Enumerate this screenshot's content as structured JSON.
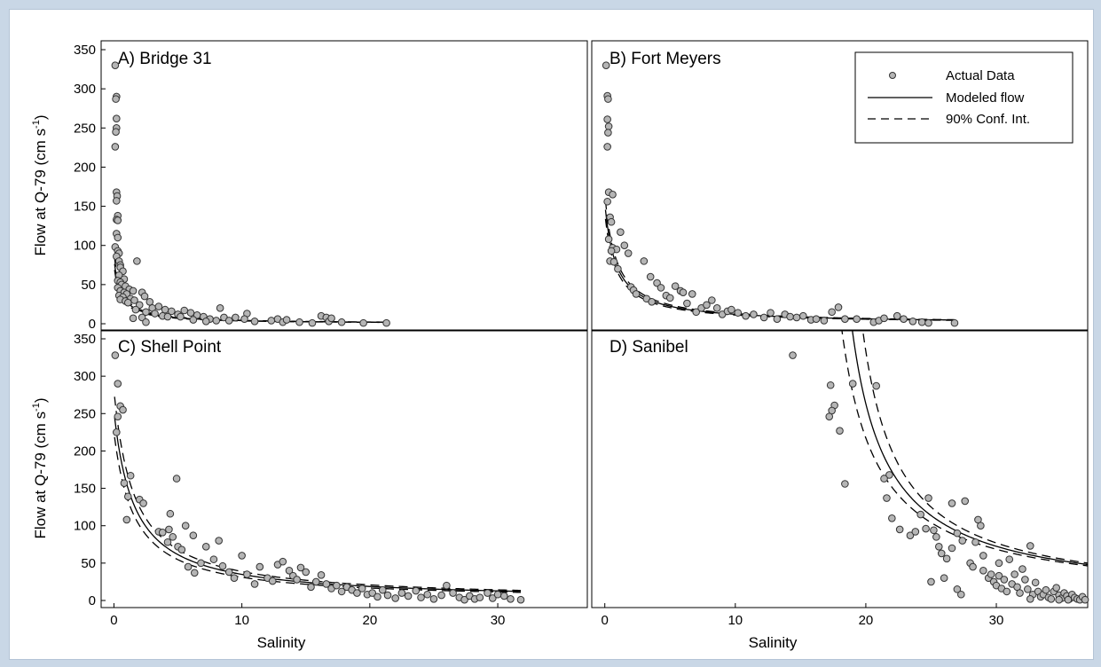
{
  "colors": {
    "marker_fill": "#b5b5b5",
    "marker_edge": "#333333",
    "line": "#000000",
    "panel_border": "#000000"
  },
  "legend": {
    "placement": "top-right of panel B",
    "entries": [
      {
        "label": "Actual Data",
        "style": "marker"
      },
      {
        "label": "Modeled flow",
        "style": "solid"
      },
      {
        "label": "90% Conf. Int.",
        "style": "dashed"
      }
    ]
  },
  "chart_data": [
    {
      "type": "scatter",
      "panel": "A",
      "title": "A) Bridge 31",
      "ylabel": "Flow at Q-79 (cm s-1)",
      "xlabel": "",
      "xlim": [
        -1,
        37
      ],
      "ylim": [
        0,
        350
      ],
      "xticks": [],
      "yticks": [
        "0",
        "50",
        "100",
        "150",
        "200",
        "250",
        "300",
        "350"
      ],
      "grid": false,
      "model": {
        "form": "a/(x+b)",
        "a": 42,
        "b": 0.5,
        "ci_low": 0.9,
        "ci_high": 1.1,
        "x_range": [
          0.05,
          21.5
        ]
      },
      "points": [
        [
          0.1,
          330
        ],
        [
          0.2,
          290
        ],
        [
          0.15,
          287
        ],
        [
          0.2,
          262
        ],
        [
          0.2,
          250
        ],
        [
          0.15,
          245
        ],
        [
          0.1,
          226
        ],
        [
          0.2,
          168
        ],
        [
          0.25,
          163
        ],
        [
          0.2,
          157
        ],
        [
          0.3,
          138
        ],
        [
          0.2,
          133
        ],
        [
          0.3,
          132
        ],
        [
          0.2,
          115
        ],
        [
          0.3,
          110
        ],
        [
          0.1,
          98
        ],
        [
          0.3,
          93
        ],
        [
          0.4,
          90
        ],
        [
          0.2,
          86
        ],
        [
          0.4,
          80
        ],
        [
          0.5,
          75
        ],
        [
          0.5,
          72
        ],
        [
          0.7,
          67
        ],
        [
          0.4,
          62
        ],
        [
          0.8,
          57
        ],
        [
          0.3,
          55
        ],
        [
          0.5,
          53
        ],
        [
          0.6,
          50
        ],
        [
          0.9,
          48
        ],
        [
          0.3,
          46
        ],
        [
          1.2,
          44
        ],
        [
          0.5,
          42
        ],
        [
          0.8,
          40
        ],
        [
          1.0,
          38
        ],
        [
          0.4,
          36
        ],
        [
          0.7,
          34
        ],
        [
          1.3,
          32
        ],
        [
          0.5,
          31
        ],
        [
          0.9,
          29
        ],
        [
          1.1,
          27
        ],
        [
          1.8,
          80
        ],
        [
          1.5,
          42
        ],
        [
          2.2,
          40
        ],
        [
          2.4,
          35
        ],
        [
          1.6,
          30
        ],
        [
          2.8,
          28
        ],
        [
          2.0,
          24
        ],
        [
          3.0,
          20
        ],
        [
          1.7,
          18
        ],
        [
          3.5,
          22
        ],
        [
          2.5,
          15
        ],
        [
          4.0,
          18
        ],
        [
          3.2,
          13
        ],
        [
          4.5,
          16
        ],
        [
          5.0,
          12
        ],
        [
          3.8,
          10
        ],
        [
          4.2,
          9
        ],
        [
          2.2,
          8
        ],
        [
          1.5,
          7
        ],
        [
          2.5,
          2
        ],
        [
          5.5,
          17
        ],
        [
          6.0,
          14
        ],
        [
          5.2,
          9
        ],
        [
          6.5,
          11
        ],
        [
          6.2,
          5
        ],
        [
          7.0,
          9
        ],
        [
          7.5,
          6
        ],
        [
          8.0,
          4
        ],
        [
          7.2,
          3
        ],
        [
          8.3,
          20
        ],
        [
          8.6,
          8
        ],
        [
          9.0,
          4
        ],
        [
          9.5,
          8
        ],
        [
          10.4,
          13
        ],
        [
          10.2,
          6
        ],
        [
          11.0,
          3
        ],
        [
          12.3,
          4
        ],
        [
          12.8,
          6
        ],
        [
          13.2,
          2
        ],
        [
          13.5,
          5
        ],
        [
          14.5,
          2
        ],
        [
          15.5,
          1
        ],
        [
          16.2,
          10
        ],
        [
          16.6,
          8
        ],
        [
          16.8,
          3
        ],
        [
          17.0,
          7
        ],
        [
          17.8,
          2
        ],
        [
          19.5,
          1
        ],
        [
          21.3,
          1
        ]
      ]
    },
    {
      "type": "scatter",
      "panel": "B",
      "title": "B) Fort Meyers",
      "ylabel": "",
      "xlabel": "",
      "xlim": [
        -1,
        37
      ],
      "ylim": [
        0,
        350
      ],
      "xticks": [],
      "yticks": [],
      "grid": false,
      "model": {
        "form": "a/(x+b)",
        "a": 131,
        "b": 0.85,
        "ci_low": 0.92,
        "ci_high": 1.08,
        "x_range": [
          0.05,
          26.8
        ]
      },
      "points": [
        [
          0.1,
          330
        ],
        [
          0.2,
          291
        ],
        [
          0.25,
          287
        ],
        [
          0.2,
          261
        ],
        [
          0.3,
          252
        ],
        [
          0.25,
          244
        ],
        [
          0.2,
          226
        ],
        [
          0.3,
          168
        ],
        [
          0.6,
          165
        ],
        [
          0.2,
          156
        ],
        [
          0.4,
          136
        ],
        [
          0.5,
          130
        ],
        [
          0.3,
          108
        ],
        [
          0.6,
          97
        ],
        [
          0.9,
          95
        ],
        [
          0.5,
          93
        ],
        [
          0.4,
          80
        ],
        [
          0.7,
          79
        ],
        [
          1.0,
          70
        ],
        [
          1.2,
          117
        ],
        [
          1.5,
          100
        ],
        [
          1.8,
          90
        ],
        [
          2.0,
          47
        ],
        [
          2.2,
          43
        ],
        [
          2.4,
          38
        ],
        [
          3.0,
          80
        ],
        [
          3.5,
          60
        ],
        [
          3.2,
          32
        ],
        [
          3.6,
          28
        ],
        [
          4.0,
          52
        ],
        [
          4.3,
          46
        ],
        [
          4.7,
          36
        ],
        [
          5.0,
          33
        ],
        [
          5.4,
          48
        ],
        [
          5.8,
          42
        ],
        [
          6.0,
          40
        ],
        [
          6.3,
          26
        ],
        [
          6.7,
          38
        ],
        [
          7.0,
          15
        ],
        [
          7.4,
          20
        ],
        [
          7.8,
          24
        ],
        [
          8.2,
          30
        ],
        [
          8.6,
          20
        ],
        [
          9.0,
          12
        ],
        [
          9.4,
          16
        ],
        [
          9.7,
          18
        ],
        [
          10.2,
          14
        ],
        [
          10.8,
          10
        ],
        [
          11.4,
          12
        ],
        [
          12.2,
          8
        ],
        [
          12.7,
          14
        ],
        [
          13.2,
          6
        ],
        [
          13.8,
          12
        ],
        [
          14.2,
          9
        ],
        [
          14.7,
          8
        ],
        [
          15.2,
          10
        ],
        [
          15.8,
          5
        ],
        [
          16.2,
          6
        ],
        [
          16.8,
          4
        ],
        [
          17.4,
          15
        ],
        [
          17.9,
          21
        ],
        [
          18.4,
          6
        ],
        [
          19.3,
          6
        ],
        [
          20.6,
          2
        ],
        [
          21.0,
          4
        ],
        [
          21.4,
          7
        ],
        [
          22.4,
          10
        ],
        [
          22.9,
          6
        ],
        [
          23.6,
          3
        ],
        [
          24.3,
          2
        ],
        [
          24.8,
          1
        ],
        [
          26.8,
          1
        ]
      ]
    },
    {
      "type": "scatter",
      "panel": "C",
      "title": "C) Shell Point",
      "ylabel": "Flow at Q-79 (cm s-1)",
      "xlabel": "Salinity",
      "xlim": [
        -1,
        37
      ],
      "ylim": [
        0,
        350
      ],
      "xticks": [
        "0",
        "10",
        "20",
        "30"
      ],
      "yticks": [
        "0",
        "50",
        "100",
        "150",
        "200",
        "250",
        "300",
        "350"
      ],
      "grid": false,
      "model": {
        "form": "a/(x+b)",
        "a": 405,
        "b": 1.6,
        "ci_low": 0.89,
        "ci_high": 1.11,
        "x_range": [
          0.05,
          31.8
        ]
      },
      "points": [
        [
          0.1,
          328
        ],
        [
          0.3,
          290
        ],
        [
          0.5,
          260
        ],
        [
          0.7,
          255
        ],
        [
          0.3,
          246
        ],
        [
          0.2,
          225
        ],
        [
          0.8,
          157
        ],
        [
          1.3,
          167
        ],
        [
          1.1,
          139
        ],
        [
          1.0,
          108
        ],
        [
          2.0,
          135
        ],
        [
          2.3,
          130
        ],
        [
          3.5,
          92
        ],
        [
          3.8,
          91
        ],
        [
          4.3,
          95
        ],
        [
          4.4,
          116
        ],
        [
          4.9,
          163
        ],
        [
          4.6,
          85
        ],
        [
          4.2,
          78
        ],
        [
          5.0,
          72
        ],
        [
          5.3,
          68
        ],
        [
          5.6,
          100
        ],
        [
          6.2,
          87
        ],
        [
          5.8,
          45
        ],
        [
          6.3,
          37
        ],
        [
          6.8,
          50
        ],
        [
          7.2,
          72
        ],
        [
          7.8,
          55
        ],
        [
          8.2,
          80
        ],
        [
          8.5,
          46
        ],
        [
          9.0,
          38
        ],
        [
          9.4,
          30
        ],
        [
          10.0,
          60
        ],
        [
          10.4,
          35
        ],
        [
          11.0,
          22
        ],
        [
          11.4,
          45
        ],
        [
          12.0,
          30
        ],
        [
          12.4,
          26
        ],
        [
          12.8,
          48
        ],
        [
          13.2,
          52
        ],
        [
          13.7,
          40
        ],
        [
          14.0,
          33
        ],
        [
          14.3,
          28
        ],
        [
          14.6,
          44
        ],
        [
          15.0,
          38
        ],
        [
          15.4,
          18
        ],
        [
          15.8,
          25
        ],
        [
          16.2,
          34
        ],
        [
          16.6,
          22
        ],
        [
          17.0,
          16
        ],
        [
          17.4,
          20
        ],
        [
          17.8,
          12
        ],
        [
          18.2,
          18
        ],
        [
          18.6,
          14
        ],
        [
          19.0,
          10
        ],
        [
          19.4,
          16
        ],
        [
          19.8,
          8
        ],
        [
          20.2,
          10
        ],
        [
          20.6,
          5
        ],
        [
          21.0,
          14
        ],
        [
          21.4,
          7
        ],
        [
          22.0,
          3
        ],
        [
          22.5,
          10
        ],
        [
          23.0,
          6
        ],
        [
          23.6,
          13
        ],
        [
          24.0,
          4
        ],
        [
          24.5,
          8
        ],
        [
          25.0,
          2
        ],
        [
          25.6,
          7
        ],
        [
          26.0,
          20
        ],
        [
          26.5,
          10
        ],
        [
          27.0,
          4
        ],
        [
          27.4,
          1
        ],
        [
          27.8,
          6
        ],
        [
          28.2,
          2
        ],
        [
          28.6,
          4
        ],
        [
          29.2,
          10
        ],
        [
          29.6,
          3
        ],
        [
          30.0,
          8
        ],
        [
          30.5,
          6
        ],
        [
          31.0,
          2
        ],
        [
          31.8,
          1
        ]
      ]
    },
    {
      "type": "scatter",
      "panel": "D",
      "title": "D) Sanibel",
      "ylabel": "",
      "xlabel": "Salinity",
      "xlim": [
        -1,
        37
      ],
      "ylim": [
        0,
        350
      ],
      "xticks": [
        "0",
        "10",
        "20",
        "30"
      ],
      "yticks": [],
      "grid": false,
      "model": {
        "form": "a/(x-b)",
        "a": 1000,
        "b": 16.2,
        "ci_low_b": 15.4,
        "ci_high_b": 17.0,
        "x_range": [
          17.4,
          37
        ]
      },
      "points": [
        [
          14.4,
          328
        ],
        [
          17.3,
          288
        ],
        [
          17.6,
          261
        ],
        [
          17.4,
          254
        ],
        [
          17.2,
          246
        ],
        [
          18.0,
          227
        ],
        [
          18.4,
          156
        ],
        [
          19.0,
          290
        ],
        [
          20.8,
          287
        ],
        [
          21.8,
          168
        ],
        [
          21.4,
          163
        ],
        [
          21.6,
          137
        ],
        [
          22.0,
          110
        ],
        [
          22.6,
          95
        ],
        [
          23.4,
          87
        ],
        [
          23.8,
          92
        ],
        [
          24.2,
          115
        ],
        [
          24.6,
          96
        ],
        [
          24.8,
          137
        ],
        [
          25.2,
          94
        ],
        [
          25.4,
          85
        ],
        [
          25.6,
          72
        ],
        [
          25.8,
          63
        ],
        [
          26.2,
          56
        ],
        [
          26.6,
          130
        ],
        [
          27.0,
          90
        ],
        [
          27.4,
          80
        ],
        [
          27.6,
          133
        ],
        [
          28.0,
          50
        ],
        [
          28.2,
          45
        ],
        [
          28.4,
          78
        ],
        [
          28.6,
          108
        ],
        [
          28.8,
          100
        ],
        [
          29.0,
          40
        ],
        [
          29.4,
          30
        ],
        [
          29.6,
          35
        ],
        [
          29.8,
          25
        ],
        [
          30.0,
          20
        ],
        [
          30.2,
          33
        ],
        [
          30.4,
          16
        ],
        [
          30.6,
          28
        ],
        [
          30.8,
          12
        ],
        [
          31.0,
          55
        ],
        [
          31.2,
          22
        ],
        [
          31.4,
          35
        ],
        [
          31.6,
          18
        ],
        [
          31.8,
          10
        ],
        [
          32.0,
          42
        ],
        [
          32.2,
          28
        ],
        [
          32.4,
          15
        ],
        [
          32.6,
          73
        ],
        [
          32.8,
          8
        ],
        [
          33.0,
          24
        ],
        [
          33.2,
          12
        ],
        [
          33.4,
          5
        ],
        [
          33.6,
          8
        ],
        [
          33.8,
          14
        ],
        [
          34.0,
          4
        ],
        [
          34.2,
          2
        ],
        [
          34.4,
          12
        ],
        [
          34.6,
          17
        ],
        [
          34.8,
          7
        ],
        [
          35.0,
          3
        ],
        [
          35.2,
          10
        ],
        [
          35.4,
          6
        ],
        [
          35.6,
          2
        ],
        [
          35.8,
          8
        ],
        [
          36.0,
          4
        ],
        [
          36.2,
          2
        ],
        [
          36.4,
          1
        ],
        [
          36.6,
          5
        ],
        [
          36.8,
          1
        ],
        [
          27.0,
          15
        ],
        [
          27.3,
          8
        ],
        [
          26.0,
          30
        ],
        [
          26.6,
          70
        ],
        [
          29.0,
          60
        ],
        [
          30.2,
          50
        ],
        [
          25.0,
          25
        ],
        [
          32.6,
          2
        ],
        [
          34.8,
          1
        ],
        [
          35.5,
          1
        ]
      ]
    }
  ]
}
